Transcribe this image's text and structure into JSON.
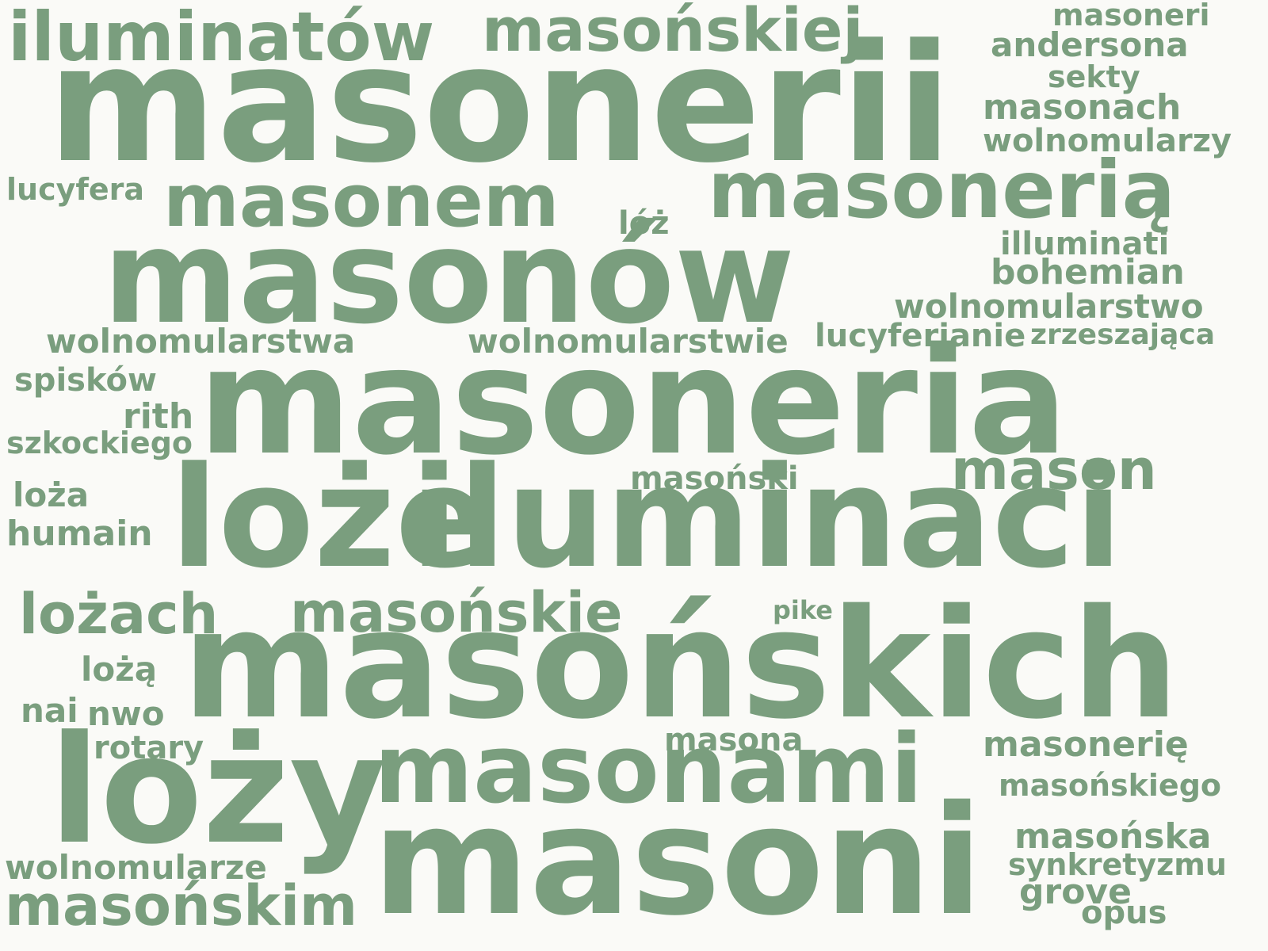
{
  "color": "#7a9e7e",
  "background": "#fafaf7",
  "words": [
    {
      "id": "masonerii",
      "text": "masonerii"
    },
    {
      "id": "iluminatow",
      "text": "iluminatów"
    },
    {
      "id": "masonskiej",
      "text": "masońskiej"
    },
    {
      "id": "masoneri",
      "text": "masoneri"
    },
    {
      "id": "andersona",
      "text": "andersona"
    },
    {
      "id": "sekty",
      "text": "sekty"
    },
    {
      "id": "masonach",
      "text": "masonach"
    },
    {
      "id": "wolnomularzy",
      "text": "wolnomularzy"
    },
    {
      "id": "lucyfera",
      "text": "lucyfera"
    },
    {
      "id": "masonem",
      "text": "masonem"
    },
    {
      "id": "masoneria-acc",
      "text": "masonerią"
    },
    {
      "id": "loz",
      "text": "lóż"
    },
    {
      "id": "masonow",
      "text": "masonów"
    },
    {
      "id": "illuminati",
      "text": "illuminati"
    },
    {
      "id": "bohemian",
      "text": "bohemian"
    },
    {
      "id": "wolnomularstwo",
      "text": "wolnomularstwo"
    },
    {
      "id": "wolnomularstwa",
      "text": "wolnomularstwa"
    },
    {
      "id": "wolnomularstwie",
      "text": "wolnomularstwie"
    },
    {
      "id": "lucyferianie",
      "text": "lucyferianie"
    },
    {
      "id": "zrzeszajaca",
      "text": "zrzeszająca"
    },
    {
      "id": "spiskow",
      "text": "spisków"
    },
    {
      "id": "masoneria",
      "text": "masoneria"
    },
    {
      "id": "rith",
      "text": "rith"
    },
    {
      "id": "szkockiego",
      "text": "szkockiego"
    },
    {
      "id": "mason",
      "text": "mason"
    },
    {
      "id": "masonski",
      "text": "masoński"
    },
    {
      "id": "loza",
      "text": "loża"
    },
    {
      "id": "humain",
      "text": "humain"
    },
    {
      "id": "loze",
      "text": "loże"
    },
    {
      "id": "iluminaci",
      "text": "iluminaci"
    },
    {
      "id": "lozach",
      "text": "lożach"
    },
    {
      "id": "masonskie",
      "text": "masońskie"
    },
    {
      "id": "pike",
      "text": "pike"
    },
    {
      "id": "loza-acc",
      "text": "lożą"
    },
    {
      "id": "masonskich",
      "text": "masońskich"
    },
    {
      "id": "nai",
      "text": "nai"
    },
    {
      "id": "nwo",
      "text": "nwo"
    },
    {
      "id": "rotary",
      "text": "rotary"
    },
    {
      "id": "masona",
      "text": "masona"
    },
    {
      "id": "masonerie",
      "text": "masonerię"
    },
    {
      "id": "lozy",
      "text": "loży"
    },
    {
      "id": "masonami",
      "text": "masonami"
    },
    {
      "id": "masonskiego",
      "text": "masońskiego"
    },
    {
      "id": "masoni",
      "text": "masoni"
    },
    {
      "id": "masonska",
      "text": "masońska"
    },
    {
      "id": "synkretyzmu",
      "text": "synkretyzmu"
    },
    {
      "id": "wolnomularze",
      "text": "wolnomularze"
    },
    {
      "id": "grove",
      "text": "grove"
    },
    {
      "id": "masonskim",
      "text": "masońskim"
    },
    {
      "id": "opus",
      "text": "opus"
    }
  ]
}
